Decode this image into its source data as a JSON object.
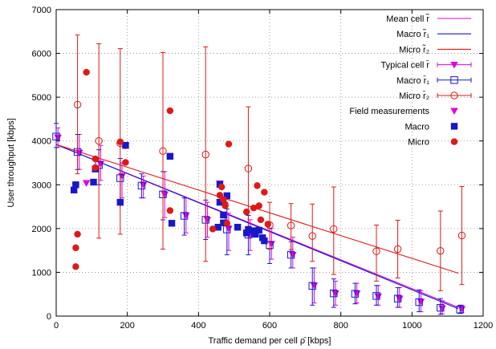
{
  "chart_data": {
    "type": "scatter",
    "xlabel": "Traffic demand per cell  ρ̄ [kbps]",
    "ylabel": "User throughput [kbps]",
    "xlim": [
      0,
      1200
    ],
    "ylim": [
      0,
      7000
    ],
    "xticks": [
      0,
      200,
      400,
      600,
      800,
      1000,
      1200
    ],
    "yticks": [
      0,
      1000,
      2000,
      3000,
      4000,
      5000,
      6000,
      7000
    ],
    "grid": "dotted",
    "legend_position": "top-right",
    "colors": {
      "mean": "#e000e0",
      "macro": "#1818c8",
      "micro": "#e01818"
    },
    "lines": [
      {
        "name": "Mean cell  r̃",
        "color": "#e000e0",
        "x": [
          0,
          1130
        ],
        "y": [
          3920,
          200
        ]
      },
      {
        "name": "Macro  r̃₁",
        "color": "#1818c8",
        "x": [
          0,
          1130
        ],
        "y": [
          3920,
          170
        ]
      },
      {
        "name": "Micro  r̃₂",
        "color": "#e01818",
        "x": [
          0,
          1130
        ],
        "y": [
          3920,
          980
        ]
      }
    ],
    "errorbar_series": [
      {
        "name": "Typical cell  r̄",
        "marker": "triangle-down",
        "color": "#e000e0",
        "points": [
          [
            5,
            4080,
            3850,
            4300
          ],
          [
            65,
            3730,
            3350,
            4150
          ],
          [
            125,
            3480,
            3100,
            3900
          ],
          [
            185,
            3200,
            2700,
            3500
          ],
          [
            245,
            3000,
            2700,
            3200
          ],
          [
            305,
            2780,
            2250,
            3300
          ],
          [
            365,
            2300,
            1900,
            2700
          ],
          [
            425,
            2200,
            1800,
            2600
          ],
          [
            485,
            2000,
            1500,
            2350
          ],
          [
            545,
            1850,
            1500,
            2200
          ],
          [
            605,
            1650,
            1300,
            2000
          ],
          [
            665,
            1400,
            1100,
            1800
          ],
          [
            725,
            700,
            300,
            1100
          ],
          [
            785,
            520,
            250,
            800
          ],
          [
            845,
            520,
            300,
            750
          ],
          [
            905,
            450,
            250,
            700
          ],
          [
            965,
            400,
            200,
            650
          ],
          [
            1025,
            330,
            100,
            580
          ],
          [
            1085,
            180,
            50,
            350
          ],
          [
            1140,
            160,
            80,
            250
          ]
        ]
      },
      {
        "name": "Macro  r̄₁",
        "marker": "square-open",
        "color": "#1818c8",
        "points": [
          [
            0,
            4100,
            3850,
            4400
          ],
          [
            60,
            3750,
            3350,
            4150
          ],
          [
            120,
            3450,
            3000,
            3800
          ],
          [
            180,
            3150,
            2650,
            3600
          ],
          [
            240,
            2980,
            2700,
            3250
          ],
          [
            300,
            2780,
            2200,
            3300
          ],
          [
            360,
            2290,
            1850,
            2700
          ],
          [
            420,
            2200,
            1750,
            2650
          ],
          [
            480,
            1980,
            1400,
            2450
          ],
          [
            540,
            1860,
            1400,
            2300
          ],
          [
            600,
            1620,
            1200,
            2000
          ],
          [
            660,
            1400,
            1100,
            1700
          ],
          [
            720,
            690,
            250,
            1100
          ],
          [
            780,
            520,
            200,
            850
          ],
          [
            840,
            510,
            280,
            750
          ],
          [
            900,
            460,
            250,
            700
          ],
          [
            960,
            400,
            200,
            650
          ],
          [
            1020,
            320,
            100,
            600
          ],
          [
            1080,
            190,
            40,
            400
          ],
          [
            1135,
            150,
            60,
            250
          ]
        ]
      },
      {
        "name": "Micro  r̄₂",
        "marker": "circle-open",
        "color": "#e01818",
        "points": [
          [
            60,
            4830,
            3250,
            6420
          ],
          [
            120,
            4000,
            1780,
            6220
          ],
          [
            180,
            3950,
            1870,
            6110
          ],
          [
            300,
            3770,
            1530,
            6020
          ],
          [
            420,
            3690,
            1250,
            6150
          ],
          [
            540,
            3370,
            1950,
            4780
          ],
          [
            600,
            2080,
            1530,
            2600
          ],
          [
            660,
            2070,
            1520,
            2570
          ],
          [
            720,
            1830,
            1250,
            2560
          ],
          [
            780,
            1990,
            950,
            2950
          ],
          [
            900,
            1480,
            800,
            2080
          ],
          [
            960,
            1530,
            870,
            2190
          ],
          [
            1080,
            1490,
            580,
            2400
          ],
          [
            1140,
            1840,
            720,
            2960
          ]
        ]
      }
    ],
    "scatter_series": [
      {
        "name": "Field measurements",
        "marker": "triangle-down",
        "color": "#e000e0",
        "points": [
          [
            55,
            2970
          ],
          [
            85,
            3040
          ],
          [
            180,
            2580
          ],
          [
            195,
            3890
          ],
          [
            320,
            3650
          ],
          [
            460,
            3030
          ],
          [
            475,
            2290
          ]
        ]
      },
      {
        "name": "Macro",
        "marker": "square",
        "color": "#1818c8",
        "points": [
          [
            50,
            2880
          ],
          [
            55,
            3000
          ],
          [
            110,
            3360
          ],
          [
            105,
            3060
          ],
          [
            180,
            2600
          ],
          [
            195,
            3900
          ],
          [
            320,
            3650
          ],
          [
            325,
            2120
          ],
          [
            455,
            2030
          ],
          [
            460,
            3010
          ],
          [
            470,
            2310
          ],
          [
            470,
            2130
          ],
          [
            480,
            2750
          ],
          [
            510,
            2030
          ],
          [
            535,
            1900
          ],
          [
            540,
            1980
          ],
          [
            555,
            1950
          ],
          [
            560,
            1870
          ],
          [
            570,
            1960
          ],
          [
            580,
            1790
          ],
          [
            585,
            1720
          ],
          [
            460,
            2600
          ]
        ]
      },
      {
        "name": "Micro",
        "marker": "circle",
        "color": "#e01818",
        "points": [
          [
            55,
            1130
          ],
          [
            55,
            1560
          ],
          [
            60,
            1870
          ],
          [
            110,
            3390
          ],
          [
            110,
            3590
          ],
          [
            180,
            3980
          ],
          [
            195,
            3510
          ],
          [
            320,
            2410
          ],
          [
            320,
            4690
          ],
          [
            440,
            1990
          ],
          [
            460,
            2760
          ],
          [
            465,
            2950
          ],
          [
            470,
            2660
          ],
          [
            475,
            2550
          ],
          [
            475,
            2520
          ],
          [
            480,
            2120
          ],
          [
            485,
            3930
          ],
          [
            535,
            2380
          ],
          [
            555,
            2470
          ],
          [
            565,
            2980
          ],
          [
            570,
            2520
          ],
          [
            575,
            2200
          ],
          [
            585,
            2830
          ],
          [
            595,
            2100
          ],
          [
            85,
            5570
          ]
        ]
      }
    ],
    "legend": [
      {
        "label": "Mean cell  r̃",
        "kind": "line",
        "color": "#e000e0"
      },
      {
        "label": "Macro  r̃₁",
        "kind": "line",
        "color": "#1818c8"
      },
      {
        "label": "Micro  r̃₂",
        "kind": "line",
        "color": "#e01818"
      },
      {
        "label": "Typical cell  r̄",
        "kind": "errorbar",
        "marker": "triangle-down",
        "color": "#e000e0"
      },
      {
        "label": "Macro  r̄₁",
        "kind": "errorbar",
        "marker": "square-open",
        "color": "#1818c8"
      },
      {
        "label": "Micro  r̄₂",
        "kind": "errorbar",
        "marker": "circle-open",
        "color": "#e01818"
      },
      {
        "label": "Field measurements",
        "kind": "point",
        "marker": "triangle-down",
        "color": "#e000e0"
      },
      {
        "label": "Macro",
        "kind": "point",
        "marker": "square",
        "color": "#1818c8"
      },
      {
        "label": "Micro",
        "kind": "point",
        "marker": "circle",
        "color": "#e01818"
      }
    ]
  }
}
